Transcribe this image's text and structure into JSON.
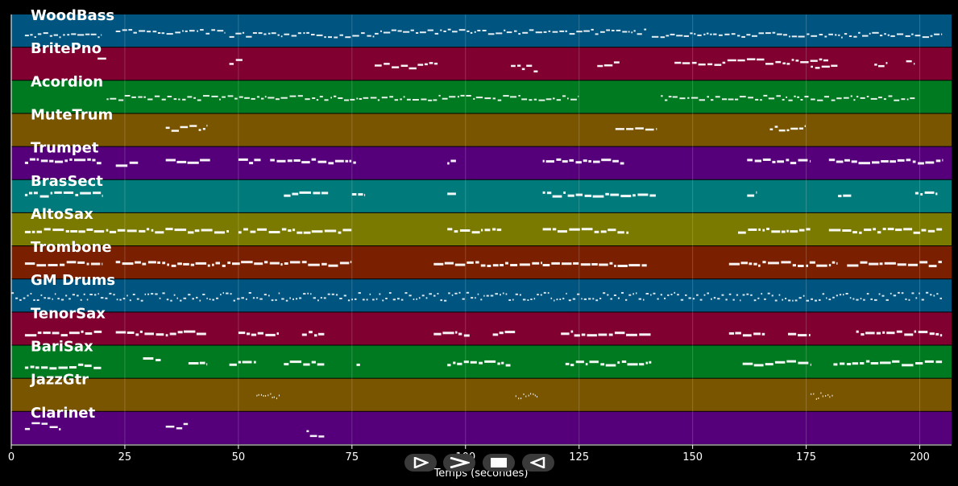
{
  "chart_data": {
    "type": "piano-roll",
    "xlabel": "Temps (secondes)",
    "xlim": [
      0,
      207
    ],
    "xticks": [
      0,
      25,
      50,
      75,
      100,
      125,
      150,
      175,
      200
    ],
    "tracks": [
      {
        "name": "WoodBass",
        "color": "#005580",
        "segments": [
          [
            3,
            20,
            0.6
          ],
          [
            23,
            47,
            0.5
          ],
          [
            48,
            80,
            0.6
          ],
          [
            80,
            140,
            0.5
          ],
          [
            141,
            205,
            0.6
          ]
        ],
        "style": "dense"
      },
      {
        "name": "BritePno",
        "color": "#800030",
        "segments": [
          [
            19,
            21,
            0.4
          ],
          [
            48,
            51,
            0.4
          ],
          [
            80,
            94,
            0.5
          ],
          [
            110,
            116,
            0.6
          ],
          [
            129,
            134,
            0.5
          ],
          [
            146,
            180,
            0.4
          ],
          [
            176,
            182,
            0.6
          ],
          [
            190,
            193,
            0.5
          ],
          [
            197,
            199,
            0.4
          ]
        ],
        "style": "sparse"
      },
      {
        "name": "Acordion",
        "color": "#007a20",
        "segments": [
          [
            21,
            125,
            0.5
          ],
          [
            143,
            199,
            0.5
          ]
        ],
        "style": "dense"
      },
      {
        "name": "MuteTrum",
        "color": "#7a5500",
        "segments": [
          [
            34,
            43,
            0.4
          ],
          [
            133,
            142,
            0.4
          ],
          [
            167,
            175,
            0.4
          ]
        ],
        "style": "sparse"
      },
      {
        "name": "Trumpet",
        "color": "#55007a",
        "segments": [
          [
            3,
            20,
            0.4
          ],
          [
            23,
            28,
            0.5
          ],
          [
            34,
            44,
            0.4
          ],
          [
            50,
            55,
            0.4
          ],
          [
            57,
            76,
            0.4
          ],
          [
            96,
            98,
            0.4
          ],
          [
            117,
            135,
            0.4
          ],
          [
            162,
            176,
            0.4
          ],
          [
            180,
            205,
            0.4
          ]
        ],
        "style": "mixed"
      },
      {
        "name": "BrasSect",
        "color": "#007a7a",
        "segments": [
          [
            3,
            20,
            0.4
          ],
          [
            60,
            70,
            0.4
          ],
          [
            75,
            78,
            0.4
          ],
          [
            96,
            98,
            0.4
          ],
          [
            117,
            142,
            0.4
          ],
          [
            162,
            164,
            0.4
          ],
          [
            182,
            185,
            0.4
          ],
          [
            199,
            204,
            0.4
          ]
        ],
        "style": "mixed"
      },
      {
        "name": "AltoSax",
        "color": "#7a7a00",
        "segments": [
          [
            3,
            48,
            0.5
          ],
          [
            50,
            75,
            0.5
          ],
          [
            96,
            108,
            0.5
          ],
          [
            117,
            136,
            0.5
          ],
          [
            160,
            176,
            0.5
          ],
          [
            180,
            205,
            0.5
          ]
        ],
        "style": "mixed"
      },
      {
        "name": "Trombone",
        "color": "#7a2000",
        "segments": [
          [
            3,
            20,
            0.5
          ],
          [
            23,
            75,
            0.5
          ],
          [
            93,
            117,
            0.5
          ],
          [
            117,
            140,
            0.5
          ],
          [
            158,
            182,
            0.5
          ],
          [
            184,
            205,
            0.5
          ]
        ],
        "style": "mixed"
      },
      {
        "name": "GM Drums",
        "color": "#005580",
        "segments": [
          [
            0,
            205,
            0.5
          ]
        ],
        "style": "drums"
      },
      {
        "name": "TenorSax",
        "color": "#800030",
        "segments": [
          [
            3,
            20,
            0.6
          ],
          [
            23,
            43,
            0.6
          ],
          [
            50,
            59,
            0.6
          ],
          [
            64,
            69,
            0.6
          ],
          [
            93,
            101,
            0.6
          ],
          [
            106,
            111,
            0.6
          ],
          [
            121,
            141,
            0.6
          ],
          [
            158,
            166,
            0.6
          ],
          [
            171,
            176,
            0.6
          ],
          [
            186,
            205,
            0.6
          ]
        ],
        "style": "mixed"
      },
      {
        "name": "BariSax",
        "color": "#007a20",
        "segments": [
          [
            3,
            20,
            0.6
          ],
          [
            29,
            33,
            0.4
          ],
          [
            39,
            43,
            0.5
          ],
          [
            48,
            54,
            0.5
          ],
          [
            60,
            69,
            0.5
          ],
          [
            76,
            77,
            0.5
          ],
          [
            96,
            110,
            0.5
          ],
          [
            122,
            141,
            0.5
          ],
          [
            161,
            176,
            0.5
          ],
          [
            181,
            205,
            0.5
          ]
        ],
        "style": "mixed"
      },
      {
        "name": "JazzGtr",
        "color": "#7a5500",
        "segments": [
          [
            54,
            59,
            0.5
          ],
          [
            111,
            116,
            0.5
          ],
          [
            176,
            181,
            0.5
          ]
        ],
        "style": "chord"
      },
      {
        "name": "Clarinet",
        "color": "#55007a",
        "segments": [
          [
            3,
            11,
            0.4
          ],
          [
            34,
            39,
            0.4
          ],
          [
            65,
            69,
            0.65
          ]
        ],
        "style": "sparse"
      }
    ]
  },
  "controls": {
    "play_icon": "play-icon",
    "forward_icon": "fast-forward-icon",
    "stop_icon": "stop-icon",
    "back_icon": "rewind-icon"
  }
}
